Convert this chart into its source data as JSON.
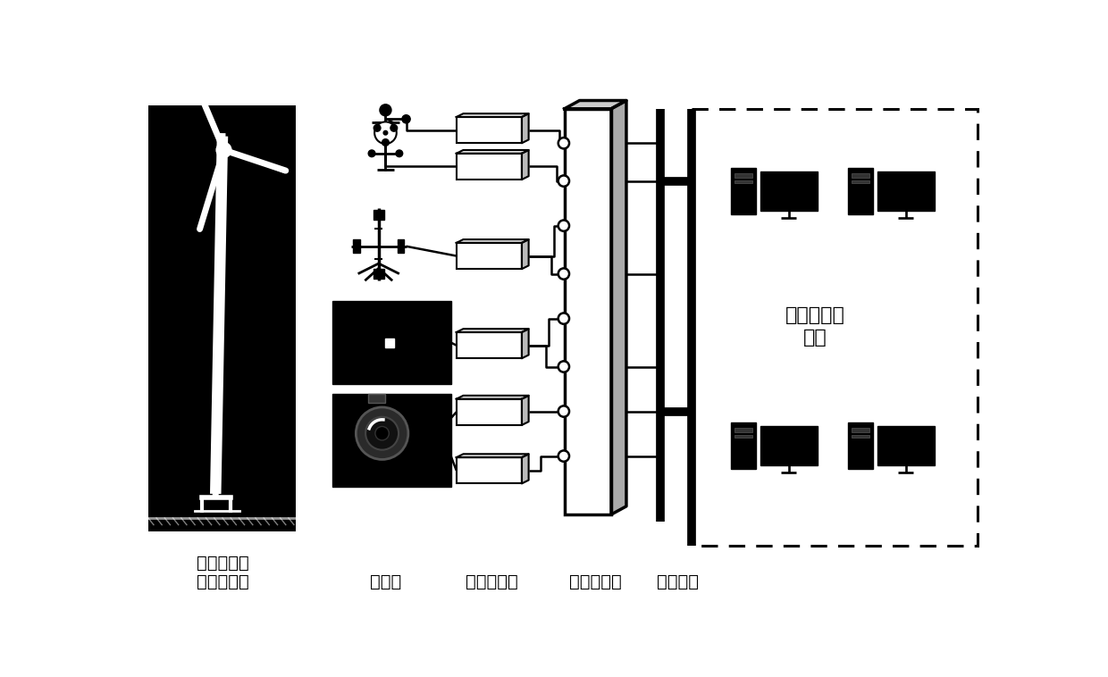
{
  "bg_color": "#ffffff",
  "label_beijiancedixiang": "被监测对象",
  "label_chuanganqi": "传感器",
  "label_xinhaofangdaqi": "信号放大器",
  "label_shujucaijiji": "数据采集器",
  "label_jiankongwangluo": "监控网络",
  "label_fengdianchang": "风电场监控",
  "label_zhongxin": "中心",
  "figsize": [
    12.4,
    7.58
  ],
  "dpi": 100
}
